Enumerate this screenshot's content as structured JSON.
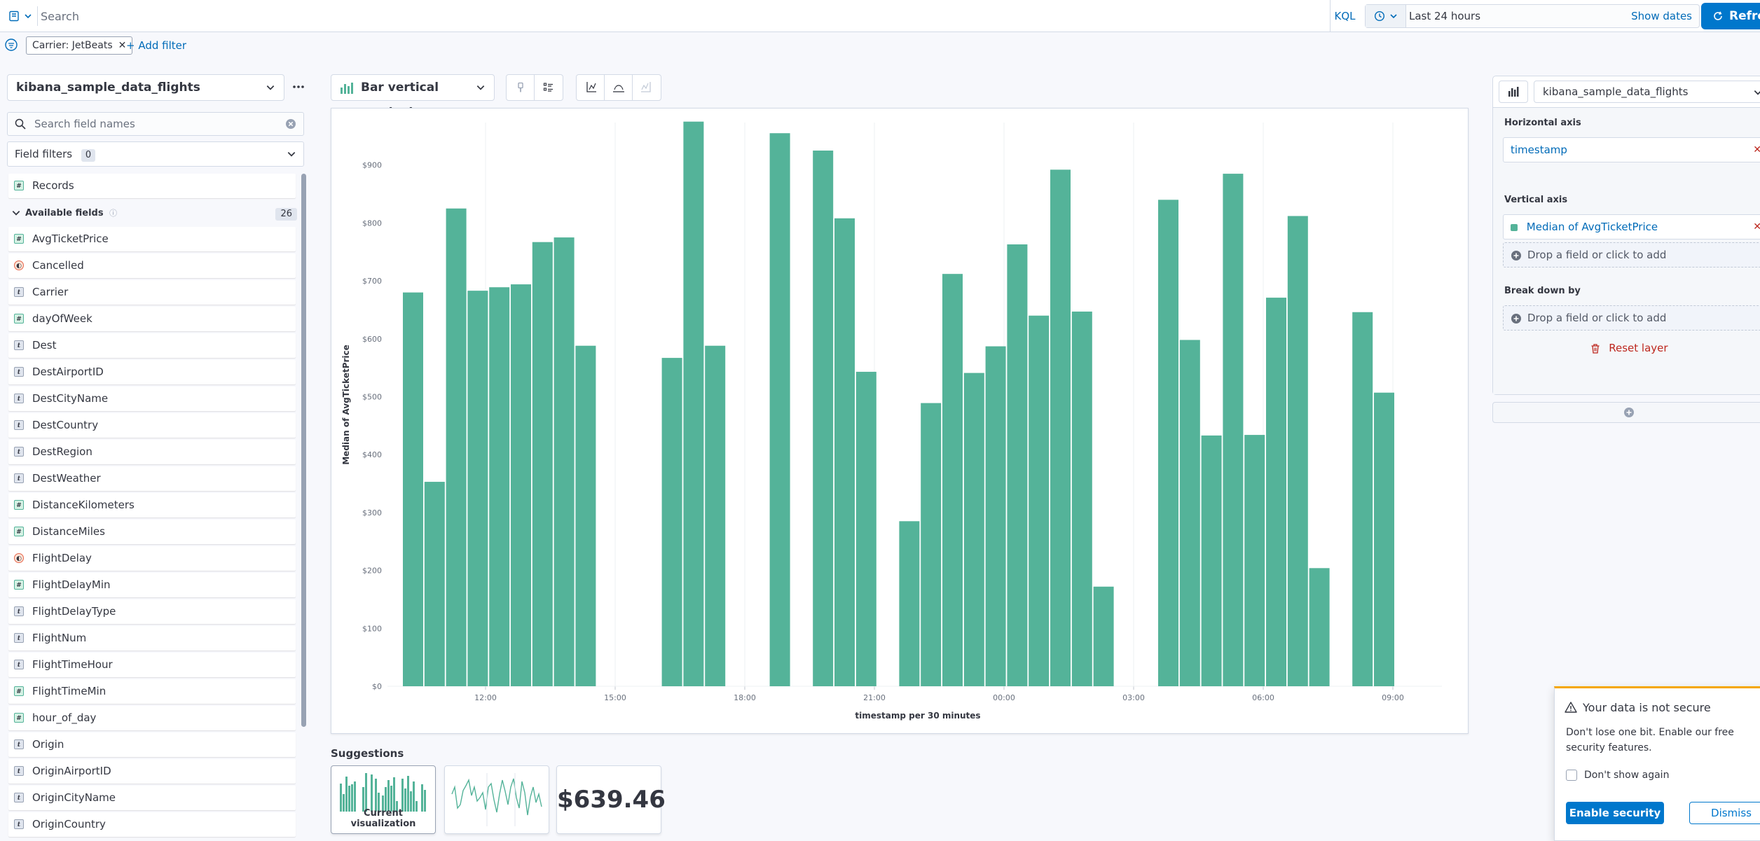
{
  "query_bar": {
    "search_placeholder": "Search",
    "language": "KQL",
    "time_range": "Last 24 hours",
    "show_dates": "Show dates",
    "refresh": "Refre"
  },
  "filter_bar": {
    "filter_label": "Carrier: JetBeats",
    "add_filter": "+ Add filter"
  },
  "sidebar": {
    "data_source": "kibana_sample_data_flights",
    "search_placeholder": "Search field names",
    "field_filters_label": "Field filters",
    "field_filters_count": "0",
    "records_label": "Records",
    "available_label": "Available fields",
    "available_count": "26",
    "fields": [
      {
        "name": "AvgTicketPrice",
        "type": "number"
      },
      {
        "name": "Cancelled",
        "type": "boolean"
      },
      {
        "name": "Carrier",
        "type": "string"
      },
      {
        "name": "dayOfWeek",
        "type": "number"
      },
      {
        "name": "Dest",
        "type": "string"
      },
      {
        "name": "DestAirportID",
        "type": "string"
      },
      {
        "name": "DestCityName",
        "type": "string"
      },
      {
        "name": "DestCountry",
        "type": "string"
      },
      {
        "name": "DestRegion",
        "type": "string"
      },
      {
        "name": "DestWeather",
        "type": "string"
      },
      {
        "name": "DistanceKilometers",
        "type": "number"
      },
      {
        "name": "DistanceMiles",
        "type": "number"
      },
      {
        "name": "FlightDelay",
        "type": "boolean"
      },
      {
        "name": "FlightDelayMin",
        "type": "number"
      },
      {
        "name": "FlightDelayType",
        "type": "string"
      },
      {
        "name": "FlightNum",
        "type": "string"
      },
      {
        "name": "FlightTimeHour",
        "type": "string"
      },
      {
        "name": "FlightTimeMin",
        "type": "number"
      },
      {
        "name": "hour_of_day",
        "type": "number"
      },
      {
        "name": "Origin",
        "type": "string"
      },
      {
        "name": "OriginAirportID",
        "type": "string"
      },
      {
        "name": "OriginCityName",
        "type": "string"
      },
      {
        "name": "OriginCountry",
        "type": "string"
      }
    ]
  },
  "workspace": {
    "vis_type": "Bar vertical stacked"
  },
  "chart_data": {
    "type": "bar",
    "xlabel": "timestamp per 30 minutes",
    "ylabel": "Median of AvgTicketPrice",
    "ylim": [
      0,
      980
    ],
    "y_ticks": [
      "$0",
      "$100",
      "$200",
      "$300",
      "$400",
      "$500",
      "$600",
      "$700",
      "$800",
      "$900"
    ],
    "x_ticks": [
      "12:00",
      "15:00",
      "18:00",
      "21:00",
      "00:00",
      "03:00",
      "06:00",
      "09:00"
    ],
    "grid": "vertical",
    "color": "#54b399",
    "bars": [
      {
        "slot": 0,
        "value": 680
      },
      {
        "slot": 1,
        "value": 353
      },
      {
        "slot": 2,
        "value": 825
      },
      {
        "slot": 3,
        "value": 683
      },
      {
        "slot": 4,
        "value": 689
      },
      {
        "slot": 5,
        "value": 694
      },
      {
        "slot": 6,
        "value": 767
      },
      {
        "slot": 7,
        "value": 775
      },
      {
        "slot": 8,
        "value": 588
      },
      {
        "slot": 12,
        "value": 567
      },
      {
        "slot": 13,
        "value": 975
      },
      {
        "slot": 14,
        "value": 588
      },
      {
        "slot": 17,
        "value": 955
      },
      {
        "slot": 19,
        "value": 925
      },
      {
        "slot": 20,
        "value": 808
      },
      {
        "slot": 21,
        "value": 543
      },
      {
        "slot": 23,
        "value": 285
      },
      {
        "slot": 24,
        "value": 489
      },
      {
        "slot": 25,
        "value": 712
      },
      {
        "slot": 26,
        "value": 541
      },
      {
        "slot": 27,
        "value": 587
      },
      {
        "slot": 28,
        "value": 763
      },
      {
        "slot": 29,
        "value": 640
      },
      {
        "slot": 30,
        "value": 892
      },
      {
        "slot": 31,
        "value": 647
      },
      {
        "slot": 32,
        "value": 172
      },
      {
        "slot": 35,
        "value": 840
      },
      {
        "slot": 36,
        "value": 598
      },
      {
        "slot": 37,
        "value": 433
      },
      {
        "slot": 38,
        "value": 885
      },
      {
        "slot": 39,
        "value": 434
      },
      {
        "slot": 40,
        "value": 671
      },
      {
        "slot": 41,
        "value": 812
      },
      {
        "slot": 42,
        "value": 204
      },
      {
        "slot": 44,
        "value": 646
      },
      {
        "slot": 45,
        "value": 507
      }
    ]
  },
  "suggestions": {
    "title": "Suggestions",
    "current_label": "Current visualization",
    "metric_value": "$639.46"
  },
  "config": {
    "data_source": "kibana_sample_data_flights",
    "horizontal_axis_label": "Horizontal axis",
    "horizontal_axis_field": "timestamp",
    "vertical_axis_label": "Vertical axis",
    "vertical_axis_field": "Median of AvgTicketPrice",
    "drop_hint": "Drop a field or click to add",
    "breakdown_label": "Break down by",
    "reset_layer": "Reset layer"
  },
  "toast": {
    "title": "Your data is not secure",
    "body": "Don't lose one bit. Enable our free security features.",
    "dont_show": "Don't show again",
    "enable": "Enable security",
    "dismiss": "Dismiss"
  },
  "colors": {
    "accent": "#0077cc",
    "bar": "#54b399",
    "danger": "#bd271e",
    "warning": "#f5a700"
  }
}
